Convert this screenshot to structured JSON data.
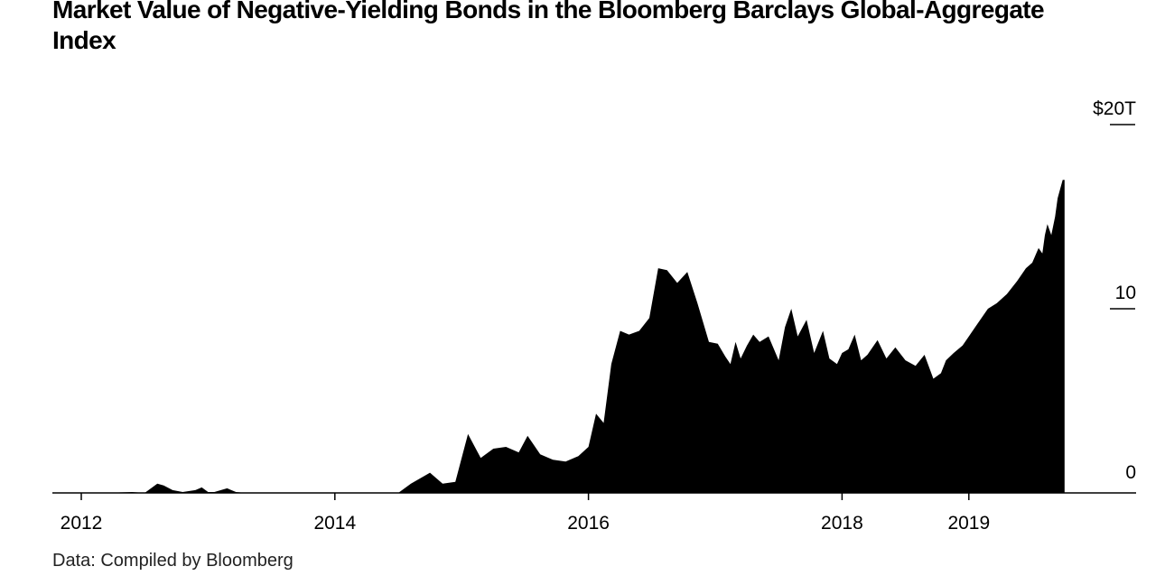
{
  "chart_data": {
    "type": "area",
    "title": "Market Value of Negative-Yielding Bonds in the Bloomberg Barclays Global-Aggregate Index",
    "source": "Data: Compiled by Bloomberg",
    "unit": "trillion USD",
    "xlim": [
      2011.9,
      2019.2
    ],
    "ylim": [
      0,
      20
    ],
    "grid": false,
    "x_ticks": [
      {
        "value": 2012,
        "label": "2012"
      },
      {
        "value": 2014,
        "label": "2014"
      },
      {
        "value": 2016,
        "label": "2016"
      },
      {
        "value": 2018,
        "label": "2018"
      },
      {
        "value": 2019,
        "label": "2019"
      }
    ],
    "y_ticks": [
      {
        "value": 20,
        "label": "$20T"
      },
      {
        "value": 10,
        "label": "10"
      },
      {
        "value": 0,
        "label": "0"
      }
    ],
    "colors": {
      "fill": "#000000",
      "axis": "#000000"
    },
    "series": [
      {
        "x": [
          2011.9,
          2012.2,
          2012.4,
          2012.5,
          2012.6,
          2012.65,
          2012.72,
          2012.8,
          2012.9,
          2012.95,
          2013.0,
          2013.05,
          2013.15,
          2013.22,
          2013.3,
          2013.4,
          2013.5,
          2014.0,
          2014.5,
          2014.6,
          2014.75,
          2014.85,
          2014.95,
          2015.05,
          2015.15,
          2015.25,
          2015.35,
          2015.45,
          2015.52,
          2015.62,
          2015.72,
          2015.82,
          2015.92,
          2016.0,
          2016.06,
          2016.12,
          2016.18,
          2016.25,
          2016.32,
          2016.4,
          2016.48,
          2016.55,
          2016.62,
          2016.7,
          2016.78,
          2016.86,
          2016.95,
          2017.02,
          2017.08,
          2017.12,
          2017.16,
          2017.2,
          2017.25,
          2017.3,
          2017.35,
          2017.42,
          2017.5,
          2017.55,
          2017.6,
          2017.65,
          2017.72,
          2017.78,
          2017.85,
          2017.9,
          2017.96,
          2018.0,
          2018.05,
          2018.1,
          2018.15,
          2018.2,
          2018.28,
          2018.35,
          2018.42,
          2018.5,
          2018.58,
          2018.65,
          2018.72,
          2018.78,
          2018.82,
          2018.88,
          2018.95,
          2019.0,
          2019.05,
          2019.1,
          2019.15,
          2019.22,
          2019.3,
          2019.38,
          2019.45,
          2019.5,
          2019.55,
          2019.58,
          2019.6,
          2019.62,
          2019.65,
          2019.68,
          2019.7,
          2019.72,
          2019.74,
          2019.755
        ],
        "values": [
          0,
          0,
          0.05,
          0,
          0.5,
          0.4,
          0.15,
          0.05,
          0.15,
          0.3,
          0.05,
          0.05,
          0.25,
          0.05,
          0,
          0,
          0,
          0,
          0,
          0.5,
          1.1,
          0.5,
          0.6,
          3.2,
          1.9,
          2.4,
          2.5,
          2.2,
          3.1,
          2.1,
          1.8,
          1.7,
          2.0,
          2.5,
          4.3,
          3.8,
          7.0,
          8.8,
          8.6,
          8.8,
          9.5,
          12.2,
          12.1,
          11.4,
          12.0,
          10.3,
          8.2,
          8.1,
          7.4,
          7.0,
          8.2,
          7.3,
          8.0,
          8.6,
          8.2,
          8.5,
          7.2,
          9.0,
          10.0,
          8.5,
          9.4,
          7.6,
          8.8,
          7.3,
          7.0,
          7.6,
          7.8,
          8.6,
          7.2,
          7.5,
          8.3,
          7.3,
          7.9,
          7.2,
          6.9,
          7.5,
          6.2,
          6.5,
          7.2,
          7.6,
          8.0,
          8.5,
          9.0,
          9.5,
          10.0,
          10.3,
          10.8,
          11.5,
          12.2,
          12.5,
          13.3,
          13.0,
          14.0,
          14.6,
          14.0,
          15.0,
          16.0,
          16.5,
          17.0,
          17.0
        ]
      }
    ]
  }
}
